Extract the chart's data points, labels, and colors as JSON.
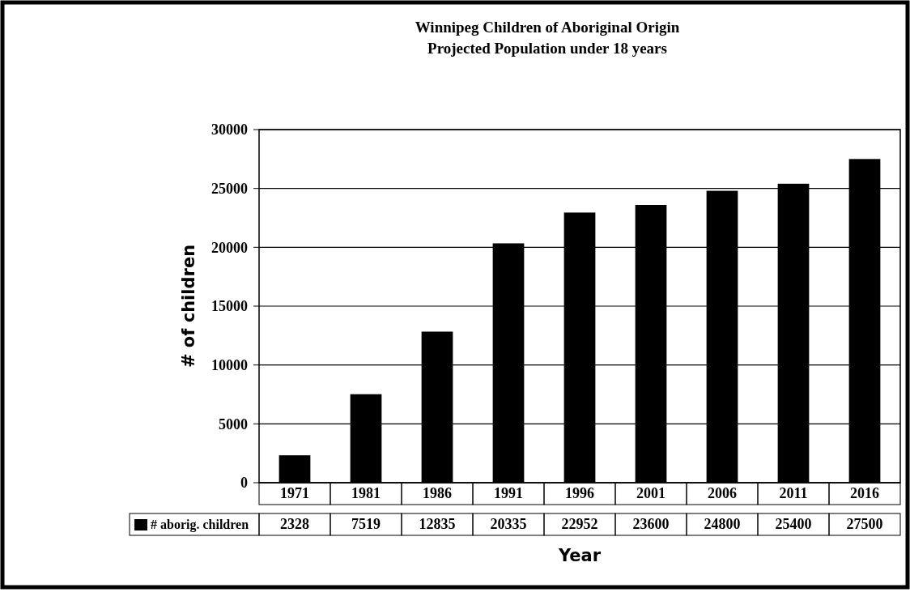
{
  "chart_data": {
    "type": "bar",
    "title": "Winnipeg Children of Aboriginal Origin",
    "subtitle": "Projected Population under 18 years",
    "xlabel": "Year",
    "ylabel": "# of children",
    "categories": [
      "1971",
      "1981",
      "1986",
      "1991",
      "1996",
      "2001",
      "2006",
      "2011",
      "2016"
    ],
    "series": [
      {
        "name": "# aborig. children",
        "color": "#000000",
        "values": [
          2328,
          7519,
          12835,
          20335,
          22952,
          23600,
          24800,
          25400,
          27500
        ]
      }
    ],
    "ylim": [
      0,
      30000
    ],
    "yticks": [
      0,
      5000,
      10000,
      15000,
      20000,
      25000,
      30000
    ],
    "grid": "y",
    "legend": "bottom",
    "data_labels": true
  }
}
